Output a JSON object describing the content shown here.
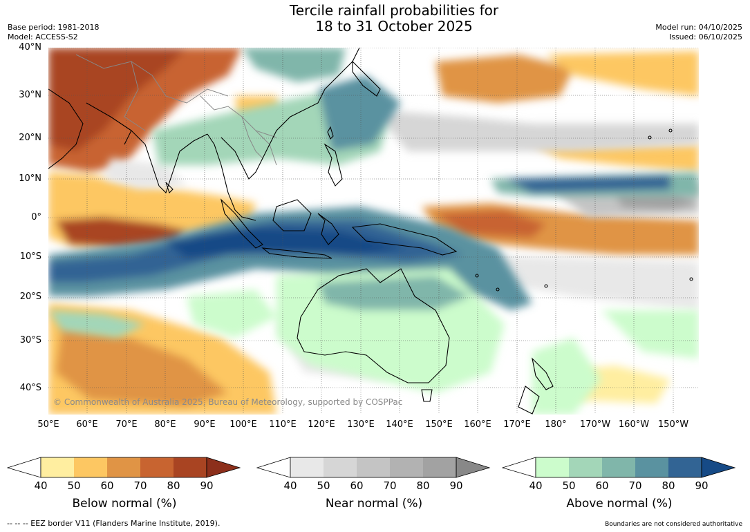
{
  "title": {
    "line1": "Tercile rainfall probabilities for",
    "line2": "18 to 31 October 2025"
  },
  "meta_left": {
    "base_period": "Base period: 1981-2018",
    "model": "Model: ACCESS-S2"
  },
  "meta_right": {
    "model_run": "Model run: 04/10/2025",
    "issued": "Issued: 06/10/2025"
  },
  "axes": {
    "lat_ticks": [
      "40°N",
      "30°N",
      "20°N",
      "10°N",
      "0°",
      "10°S",
      "20°S",
      "30°S",
      "40°S"
    ],
    "lon_ticks": [
      "50°E",
      "60°E",
      "70°E",
      "80°E",
      "90°E",
      "100°E",
      "110°E",
      "120°E",
      "130°E",
      "140°E",
      "150°E",
      "160°E",
      "170°E",
      "180°",
      "170°W",
      "160°W",
      "150°W"
    ]
  },
  "copyright": "© Commonwealth of Australia 2025, Bureau of Meteorology, supported by COSPPac",
  "colorbars": [
    {
      "label": "Below normal (%)",
      "ticks": [
        "40",
        "50",
        "60",
        "70",
        "80",
        "90"
      ],
      "colors": [
        "#ffeea0",
        "#fdc762",
        "#e09445",
        "#c86430",
        "#a94422",
        "#8c2f1b"
      ]
    },
    {
      "label": "Near normal (%)",
      "ticks": [
        "40",
        "50",
        "60",
        "70",
        "80",
        "90"
      ],
      "colors": [
        "#e8e8e8",
        "#d6d6d6",
        "#c4c4c4",
        "#b2b2b2",
        "#a2a2a2",
        "#888888"
      ]
    },
    {
      "label": "Above normal (%)",
      "ticks": [
        "40",
        "50",
        "60",
        "70",
        "80",
        "90"
      ],
      "colors": [
        "#ccfccc",
        "#a3d6b8",
        "#80b6aa",
        "#5a92a0",
        "#326494",
        "#164a86"
      ]
    }
  ],
  "footer": {
    "eez": "--  --  -- EEZ border V11 (Flanders Marine Institute, 2019).",
    "disclaimer": "Boundaries are not considered authoritative"
  },
  "colors": {
    "coastline": "#000000",
    "border": "#888888",
    "gridline": "#555555"
  }
}
